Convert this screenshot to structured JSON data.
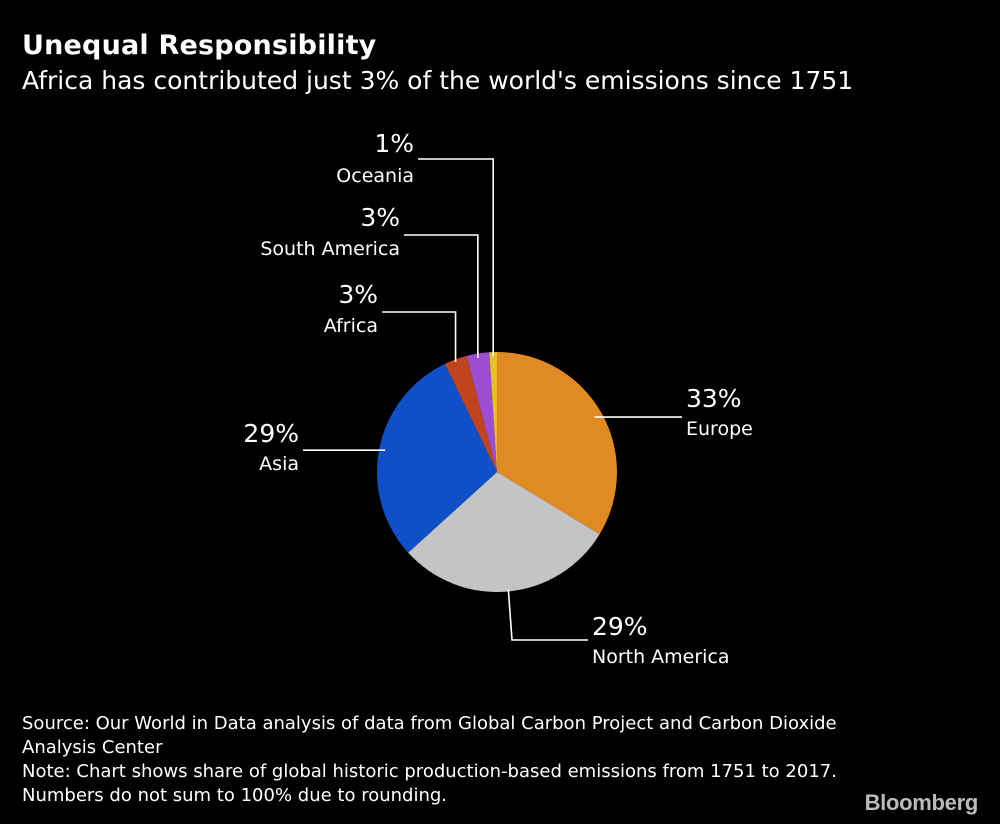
{
  "header": {
    "title": "Unequal Responsibility",
    "subtitle": "Africa has contributed just 3% of the world's emissions since 1751"
  },
  "chart_data": {
    "type": "pie",
    "title": "Unequal Responsibility",
    "subtitle": "Africa has contributed just 3% of the world's emissions since 1751",
    "slices": [
      {
        "label": "Europe",
        "value": 33,
        "display": "33%",
        "color": "#e08a24"
      },
      {
        "label": "North America",
        "value": 29,
        "display": "29%",
        "color": "#c4c4c4"
      },
      {
        "label": "Asia",
        "value": 29,
        "display": "29%",
        "color": "#0f4fc8"
      },
      {
        "label": "Africa",
        "value": 3,
        "display": "3%",
        "color": "#c0451f"
      },
      {
        "label": "South America",
        "value": 3,
        "display": "3%",
        "color": "#9b4fd0"
      },
      {
        "label": "Oceania",
        "value": 1,
        "display": "1%",
        "color": "#e6c21a"
      }
    ]
  },
  "footer": {
    "source": "Source: Our World in Data analysis of data from Global Carbon Project and Carbon Dioxide Analysis Center",
    "note": "Note: Chart shows share of global historic production-based emissions from 1751 to 2017. Numbers do not sum to 100% due to rounding."
  },
  "brand": "Bloomberg"
}
